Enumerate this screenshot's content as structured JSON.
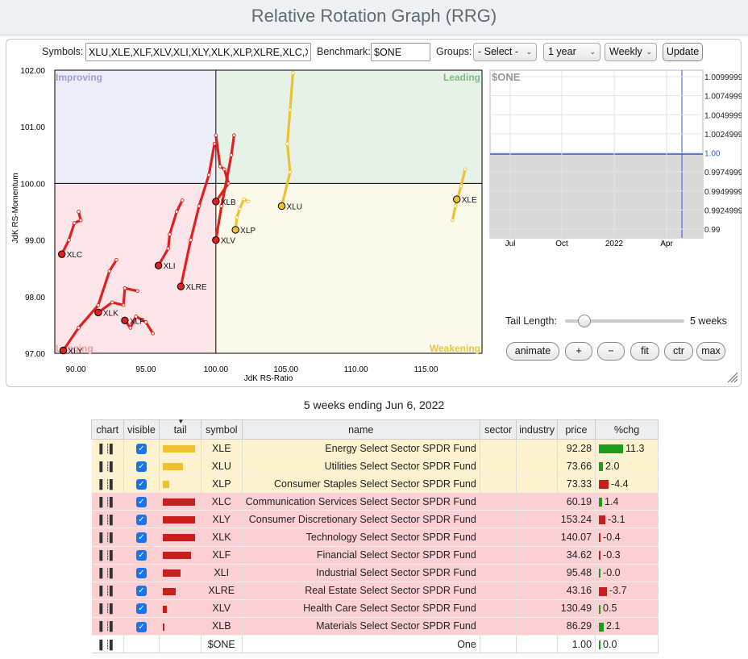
{
  "app": {
    "title": "Relative Rotation Graph (RRG)"
  },
  "controls": {
    "symbols_label": "Symbols:",
    "symbols_value": "XLU,XLE,XLF,XLV,XLI,XLY,XLK,XLP,XLRE,XLC,XLB",
    "benchmark_label": "Benchmark:",
    "benchmark_value": "$ONE",
    "groups_label": "Groups:",
    "groups_selected": "- Select -",
    "period_selected": "1 year",
    "frequency_selected": "Weekly",
    "update_label": "Update"
  },
  "rrg": {
    "y_axis_label": "JdK RS-Momentum",
    "x_axis_label": "JdK RS-Ratio",
    "quadrants": {
      "improving": "Improving",
      "leading": "Leading",
      "lagging": "Lagging",
      "weakening": "Weakening"
    },
    "quadrant_colors": {
      "improving": "#ededf8",
      "leading": "#e6f2e8",
      "lagging": "#fbe5e8",
      "weakening": "#fbf9e9"
    },
    "x_ticks": [
      "90.00",
      "95.00",
      "100.00",
      "105.00",
      "110.00",
      "115.00"
    ],
    "y_ticks": [
      "102.00",
      "101.00",
      "100.00",
      "99.00",
      "98.00",
      "97.00"
    ],
    "x_range": [
      88.5,
      119
    ],
    "y_range": [
      97,
      102
    ],
    "tails": [
      {
        "symbol": "XLE",
        "color": "#f0c030",
        "points": [
          [
            117.8,
            100.25
          ],
          [
            117.5,
            99.95
          ],
          [
            117.1,
            99.6
          ],
          [
            116.9,
            99.35
          ],
          [
            117.2,
            99.72
          ]
        ]
      },
      {
        "symbol": "XLU",
        "color": "#f0c030",
        "points": [
          [
            105.5,
            101.95
          ],
          [
            105.3,
            101.3
          ],
          [
            105.1,
            100.7
          ],
          [
            105.3,
            100.2
          ],
          [
            104.7,
            99.6
          ]
        ]
      },
      {
        "symbol": "XLP",
        "color": "#f0c030",
        "points": [
          [
            102.3,
            99.68
          ],
          [
            102.0,
            99.72
          ],
          [
            101.7,
            99.55
          ],
          [
            101.5,
            99.4
          ],
          [
            101.4,
            99.18
          ]
        ]
      },
      {
        "symbol": "XLC",
        "color": "#e02020",
        "points": [
          [
            90.2,
            99.5
          ],
          [
            90.35,
            99.35
          ],
          [
            89.9,
            99.3
          ],
          [
            89.5,
            99.0
          ],
          [
            89.0,
            98.75
          ]
        ]
      },
      {
        "symbol": "XLY",
        "color": "#e02020",
        "points": [
          [
            92.9,
            98.65
          ],
          [
            92.4,
            98.45
          ],
          [
            91.6,
            97.85
          ],
          [
            90.2,
            97.45
          ],
          [
            89.1,
            97.05
          ]
        ]
      },
      {
        "symbol": "XLK",
        "color": "#e02020",
        "points": [
          [
            94.4,
            98.1
          ],
          [
            93.5,
            98.15
          ],
          [
            93.4,
            97.85
          ],
          [
            92.6,
            97.9
          ],
          [
            91.6,
            97.72
          ]
        ]
      },
      {
        "symbol": "XLF",
        "color": "#e02020",
        "points": [
          [
            95.5,
            97.35
          ],
          [
            95.0,
            97.55
          ],
          [
            94.3,
            97.65
          ],
          [
            93.9,
            97.45
          ],
          [
            93.5,
            97.58
          ]
        ]
      },
      {
        "symbol": "XLI",
        "color": "#e02020",
        "points": [
          [
            97.6,
            99.7
          ],
          [
            97.2,
            99.5
          ],
          [
            96.7,
            99.1
          ],
          [
            96.6,
            98.85
          ],
          [
            95.9,
            98.55
          ]
        ]
      },
      {
        "symbol": "XLRE",
        "color": "#e02020",
        "points": [
          [
            99.9,
            100.7
          ],
          [
            99.5,
            100.15
          ],
          [
            98.8,
            99.6
          ],
          [
            98.2,
            99.0
          ],
          [
            97.5,
            98.18
          ]
        ]
      },
      {
        "symbol": "XLV",
        "color": "#e02020",
        "points": [
          [
            101.3,
            100.85
          ],
          [
            101.1,
            100.5
          ],
          [
            100.8,
            100.1
          ],
          [
            100.4,
            99.6
          ],
          [
            100.0,
            99.0
          ]
        ]
      },
      {
        "symbol": "XLB",
        "color": "#e02020",
        "points": [
          [
            100.0,
            100.85
          ],
          [
            100.3,
            100.3
          ],
          [
            100.6,
            100.25
          ],
          [
            100.9,
            100.0
          ],
          [
            100.0,
            99.68
          ]
        ]
      }
    ]
  },
  "mini_chart": {
    "symbol": "$ONE",
    "y_ticks": [
      "1.0099999",
      "1.0074999",
      "1.0049999",
      "1.0024999",
      "1.00",
      "0.9974999",
      "0.9949999",
      "0.9924999",
      "0.99"
    ],
    "x_ticks": [
      "Jul",
      "Oct",
      "2022",
      "Apr"
    ]
  },
  "tail_control": {
    "label": "Tail Length:",
    "value": "5 weeks",
    "fraction": 0.16
  },
  "buttons": {
    "animate": "animate",
    "plus": "+",
    "minus": "−",
    "fit": "fit",
    "ctr": "ctr",
    "max": "max"
  },
  "caption": "5 weeks ending Jun 6, 2022",
  "table": {
    "headers": [
      "chart",
      "visible",
      "tail",
      "symbol",
      "name",
      "sector",
      "industry",
      "price",
      "%chg"
    ],
    "rows": [
      {
        "symbol": "XLE",
        "name": "Energy Select Sector SPDR Fund",
        "price": "92.28",
        "chg": "11.3",
        "chg_value": 11.3,
        "tail_color": "#f0c030",
        "tail_len": 1.0,
        "group": "yel"
      },
      {
        "symbol": "XLU",
        "name": "Utilities Select Sector SPDR Fund",
        "price": "73.66",
        "chg": "2.0",
        "chg_value": 2.0,
        "tail_color": "#f0c030",
        "tail_len": 0.62,
        "group": "yel"
      },
      {
        "symbol": "XLP",
        "name": "Consumer Staples Select Sector SPDR Fund",
        "price": "73.33",
        "chg": "-4.4",
        "chg_value": -4.4,
        "tail_color": "#f0c030",
        "tail_len": 0.2,
        "group": "yel"
      },
      {
        "symbol": "XLC",
        "name": "Communication Services Select Sector SPDR Fund",
        "price": "60.19",
        "chg": "1.4",
        "chg_value": 1.4,
        "tail_color": "#c81e1e",
        "tail_len": 1.0,
        "group": "red"
      },
      {
        "symbol": "XLY",
        "name": "Consumer Discretionary Select Sector SPDR Fund",
        "price": "153.24",
        "chg": "-3.1",
        "chg_value": -3.1,
        "tail_color": "#c81e1e",
        "tail_len": 1.0,
        "group": "red"
      },
      {
        "symbol": "XLK",
        "name": "Technology Select Sector SPDR Fund",
        "price": "140.07",
        "chg": "-0.4",
        "chg_value": -0.4,
        "tail_color": "#c81e1e",
        "tail_len": 1.0,
        "group": "red"
      },
      {
        "symbol": "XLF",
        "name": "Financial Select Sector SPDR Fund",
        "price": "34.62",
        "chg": "-0.3",
        "chg_value": -0.3,
        "tail_color": "#c81e1e",
        "tail_len": 0.88,
        "group": "red"
      },
      {
        "symbol": "XLI",
        "name": "Industrial Select Sector SPDR Fund",
        "price": "95.48",
        "chg": "-0.0",
        "chg_value": 0.0,
        "tail_color": "#c81e1e",
        "tail_len": 0.55,
        "group": "red"
      },
      {
        "symbol": "XLRE",
        "name": "Real Estate Select Sector SPDR Fund",
        "price": "43.16",
        "chg": "-3.7",
        "chg_value": -3.7,
        "tail_color": "#c81e1e",
        "tail_len": 0.4,
        "group": "red"
      },
      {
        "symbol": "XLV",
        "name": "Health Care Select Sector SPDR Fund",
        "price": "130.49",
        "chg": "0.5",
        "chg_value": 0.5,
        "tail_color": "#c81e1e",
        "tail_len": 0.12,
        "group": "red"
      },
      {
        "symbol": "XLB",
        "name": "Materials Select Sector SPDR Fund",
        "price": "86.29",
        "chg": "2.1",
        "chg_value": 2.1,
        "tail_color": "#c81e1e",
        "tail_len": 0.05,
        "group": "red"
      },
      {
        "symbol": "$ONE",
        "name": "One",
        "price": "1.00",
        "chg": "0.0",
        "chg_value": 0.0,
        "tail_color": "#ffffff",
        "tail_len": 0,
        "group": "wht"
      }
    ]
  }
}
